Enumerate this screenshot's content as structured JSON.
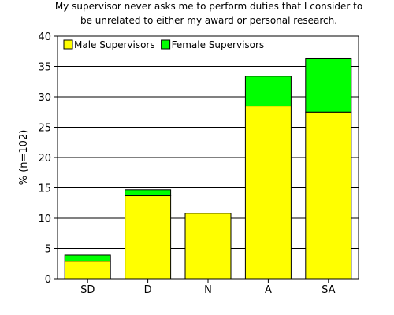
{
  "chart_data": {
    "type": "bar",
    "stacked": true,
    "title": [
      "My supervisor never asks me to perform duties that I consider to",
      "be unrelated to either my award or personal research."
    ],
    "xlabel": "",
    "ylabel": "% (n=102)",
    "categories": [
      "SD",
      "D",
      "N",
      "A",
      "SA"
    ],
    "series": [
      {
        "name": "Male Supervisors",
        "color": "#ffff00",
        "values": [
          2.9,
          13.7,
          10.8,
          28.5,
          27.5
        ]
      },
      {
        "name": "Female Supervisors",
        "color": "#00ff00",
        "values": [
          1.0,
          1.0,
          0.0,
          4.9,
          8.8
        ]
      }
    ],
    "ylim": [
      0,
      40
    ],
    "yticks": [
      0,
      5,
      10,
      15,
      20,
      25,
      30,
      35,
      40
    ],
    "grid": true,
    "legend": "top-left"
  }
}
